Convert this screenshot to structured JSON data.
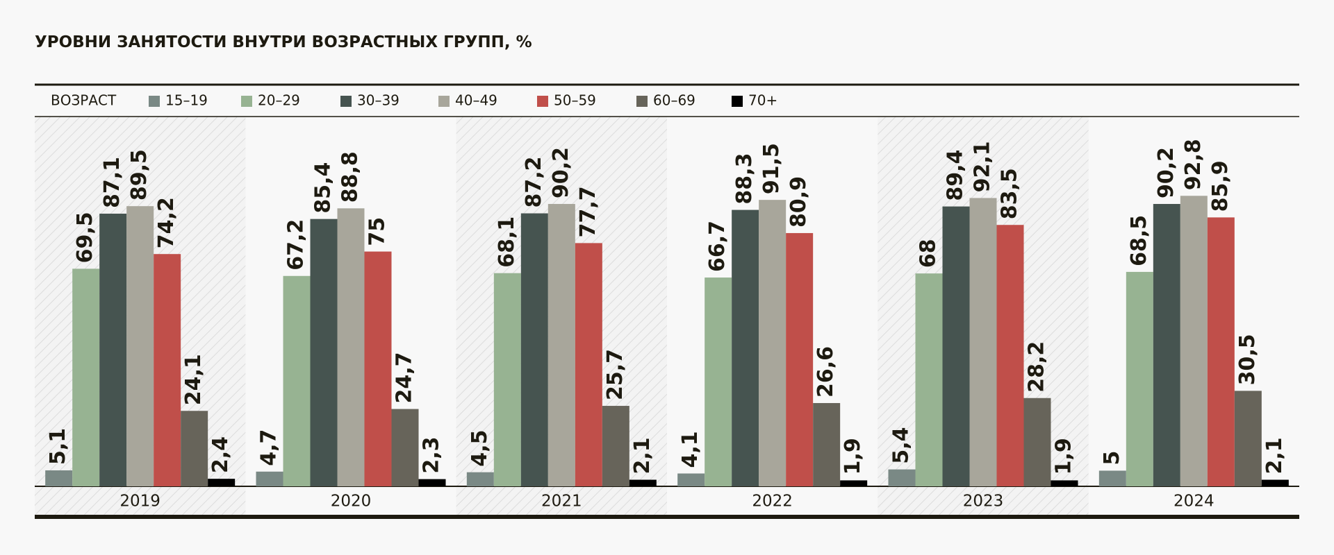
{
  "chart_data": {
    "type": "bar",
    "title": "УРОВНИ ЗАНЯТОСТИ ВНУТРИ ВОЗРАСТНЫХ ГРУПП, %",
    "legend_title": "ВОЗРАСТ",
    "categories": [
      "2019",
      "2020",
      "2021",
      "2022",
      "2023",
      "2024"
    ],
    "series": [
      {
        "name": "15–19",
        "color": "#7a8985",
        "values": [
          5.1,
          4.7,
          4.5,
          4.1,
          5.4,
          5
        ],
        "value_labels": [
          "5,1",
          "4,7",
          "4,5",
          "4,1",
          "5,4",
          "5"
        ]
      },
      {
        "name": "20–29",
        "color": "#97b392",
        "values": [
          69.5,
          67.2,
          68.1,
          66.7,
          68,
          68.5
        ],
        "value_labels": [
          "69,5",
          "67,2",
          "68,1",
          "66,7",
          "68",
          "68,5"
        ]
      },
      {
        "name": "30–39",
        "color": "#465450",
        "values": [
          87.1,
          85.4,
          87.2,
          88.3,
          89.4,
          90.2
        ],
        "value_labels": [
          "87,1",
          "85,4",
          "87,2",
          "88,3",
          "89,4",
          "90,2"
        ]
      },
      {
        "name": "40–49",
        "color": "#a8a69b",
        "values": [
          89.5,
          88.8,
          90.2,
          91.5,
          92.1,
          92.8
        ],
        "value_labels": [
          "89,5",
          "88,8",
          "90,2",
          "91,5",
          "92,1",
          "92,8"
        ]
      },
      {
        "name": "50–59",
        "color": "#c04f4a",
        "values": [
          74.2,
          75,
          77.7,
          80.9,
          83.5,
          85.9
        ],
        "value_labels": [
          "74,2",
          "75",
          "77,7",
          "80,9",
          "83,5",
          "85,9"
        ]
      },
      {
        "name": "60–69",
        "color": "#67645a",
        "values": [
          24.1,
          24.7,
          25.7,
          26.6,
          28.2,
          30.5
        ],
        "value_labels": [
          "24,1",
          "24,7",
          "25,7",
          "26,6",
          "28,2",
          "30,5"
        ]
      },
      {
        "name": "70+",
        "color": "#000000",
        "values": [
          2.4,
          2.3,
          2.1,
          1.9,
          1.9,
          2.1
        ],
        "value_labels": [
          "2,4",
          "2,3",
          "2,1",
          "1,9",
          "1,9",
          "2,1"
        ]
      }
    ]
  }
}
